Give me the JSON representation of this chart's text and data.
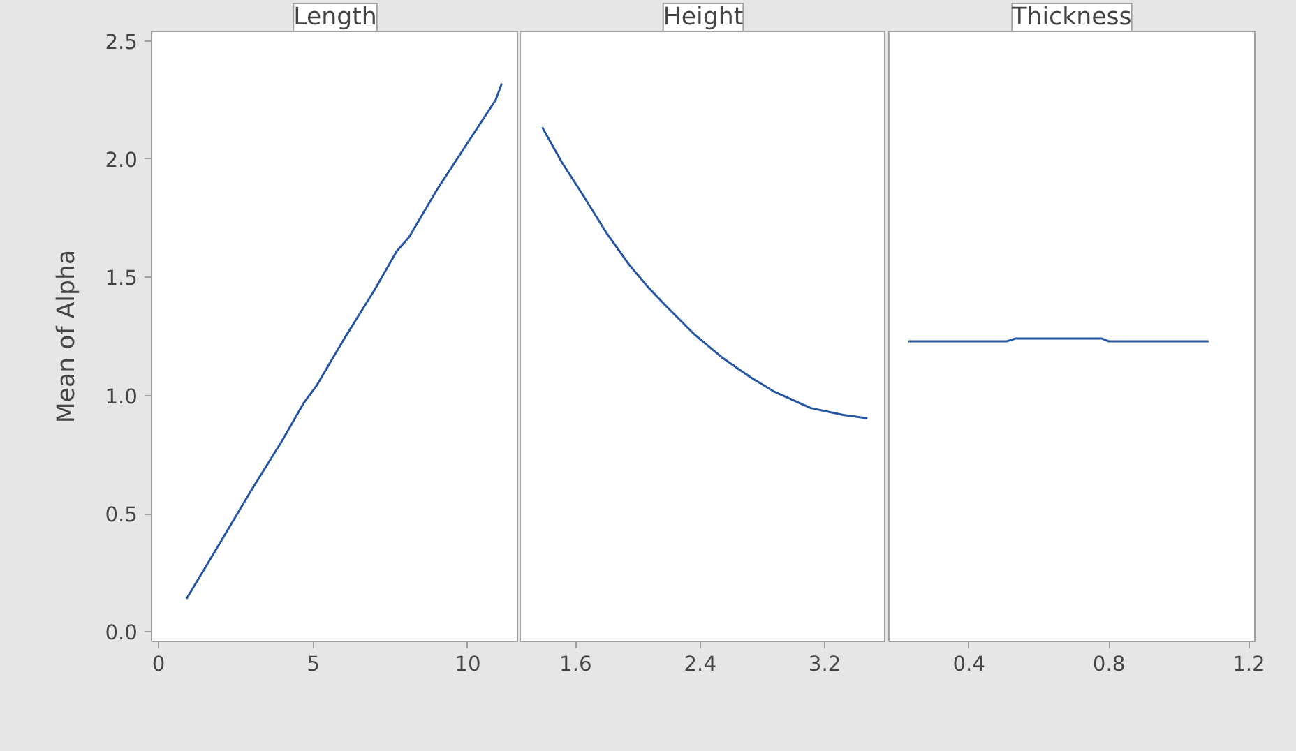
{
  "chart_data": [
    {
      "type": "line",
      "title": "Length",
      "ylabel": "Mean of Alpha",
      "color": "#2456a4",
      "x": [
        0.9,
        2,
        3,
        4,
        4.7,
        5.1,
        6,
        7,
        7.7,
        8.1,
        9,
        10,
        10.6,
        10.9,
        11.1
      ],
      "values": [
        0.14,
        0.38,
        0.6,
        0.81,
        0.97,
        1.04,
        1.24,
        1.45,
        1.61,
        1.67,
        1.87,
        2.07,
        2.19,
        2.25,
        2.32
      ],
      "xlim": [
        -0.23,
        11.65
      ],
      "ylim": [
        -0.04,
        2.54
      ],
      "xticks": [
        0,
        5,
        10
      ],
      "yticks": [
        {
          "value": 0,
          "label": "0.0"
        },
        0.5,
        {
          "value": 1,
          "label": "1.0"
        },
        1.5,
        {
          "value": 2,
          "label": "2.0"
        },
        2.5
      ]
    },
    {
      "type": "line",
      "title": "Height",
      "color": "#2456a4",
      "x": [
        1.385,
        1.51,
        1.645,
        1.794,
        1.943,
        2.063,
        2.183,
        2.362,
        2.542,
        2.721,
        2.87,
        3.11,
        3.318,
        3.474
      ],
      "values": [
        2.135,
        1.988,
        1.85,
        1.692,
        1.554,
        1.46,
        1.377,
        1.259,
        1.16,
        1.078,
        1.018,
        0.947,
        0.918,
        0.904
      ],
      "xlim": [
        1.244,
        3.594
      ],
      "ylim": [
        -0.04,
        2.54
      ],
      "xticks": [
        1.6,
        2.4,
        3.2
      ],
      "tick_labels": "x"
    },
    {
      "type": "line",
      "title": "Thickness",
      "color": "#2456a4",
      "x": [
        0.227,
        0.507,
        0.533,
        0.78,
        0.8,
        1.085
      ],
      "values": [
        1.229,
        1.229,
        1.241,
        1.241,
        1.229,
        1.229
      ],
      "xlim": [
        0.171,
        1.217
      ],
      "ylim": [
        -0.04,
        2.54
      ],
      "xticks": [
        0.4,
        0.8,
        1.2
      ],
      "tick_labels": "x"
    }
  ]
}
